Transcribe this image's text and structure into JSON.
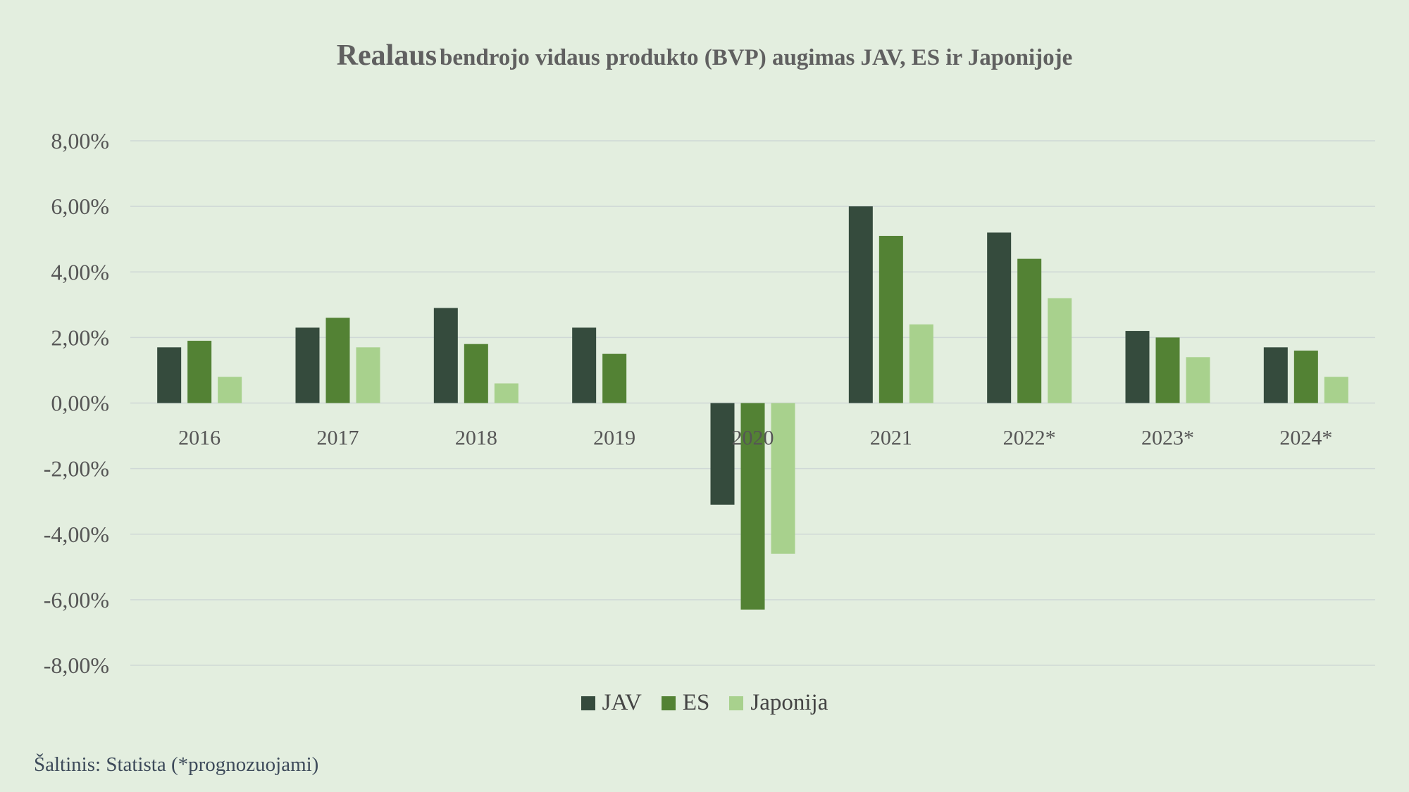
{
  "title_main": "Realaus",
  "title_rest": "bendrojo vidaus produkto (BVP) augimas JAV, ES ir Japonijoje",
  "source": "Šaltinis: Statista (*prognozuojami)",
  "chart_data": {
    "type": "bar",
    "title": "Realaus bendrojo vidaus produkto (BVP) augimas JAV, ES ir Japonijoje",
    "categories": [
      "2016",
      "2017",
      "2018",
      "2019",
      "2020",
      "2021",
      "2022*",
      "2023*",
      "2024*"
    ],
    "ylim": [
      -8,
      8
    ],
    "yticks": [
      8,
      6,
      4,
      2,
      0,
      -2,
      -4,
      -6,
      -8
    ],
    "ytick_labels": [
      "8,00%",
      "6,00%",
      "4,00%",
      "2,00%",
      "0,00%",
      "-2,00%",
      "-4,00%",
      "-6,00%",
      "-8,00%"
    ],
    "grid": true,
    "legend_position": "bottom",
    "series": [
      {
        "name": "JAV",
        "color": "#354b3d",
        "values": [
          1.7,
          2.3,
          2.9,
          2.3,
          -3.1,
          6.0,
          5.2,
          2.2,
          1.7
        ]
      },
      {
        "name": "ES",
        "color": "#538234",
        "values": [
          1.9,
          2.6,
          1.8,
          1.5,
          -6.3,
          5.1,
          4.4,
          2.0,
          1.6
        ]
      },
      {
        "name": "Japonija",
        "color": "#a8d18d",
        "values": [
          0.8,
          1.7,
          0.6,
          0.0,
          -4.6,
          2.4,
          3.2,
          1.4,
          0.8
        ]
      }
    ]
  }
}
